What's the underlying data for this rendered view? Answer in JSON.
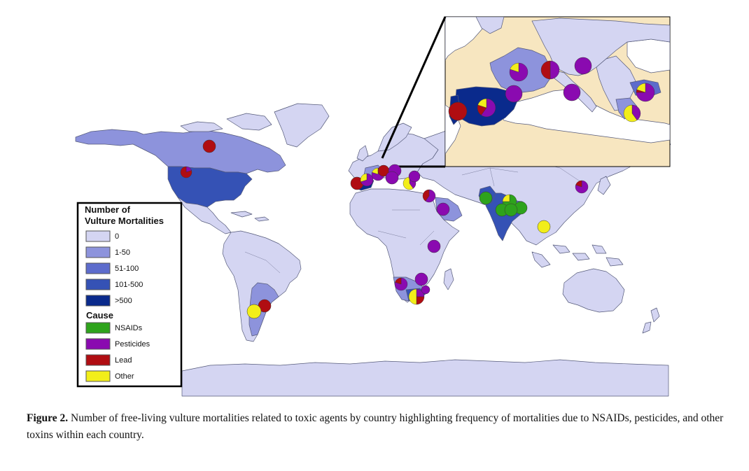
{
  "figure": {
    "caption_label": "Figure 2.",
    "caption_text": "Number of free-living vulture mortalities related to toxic agents by country highlighting frequency of mortalities due to NSAIDs, pesticides, and other toxins within each country."
  },
  "legend": {
    "title_line1": "Number of",
    "title_line2": "Vulture Mortalities",
    "classes": [
      {
        "label": "0",
        "color": "#d4d5f2"
      },
      {
        "label": "1-50",
        "color": "#8d93dc"
      },
      {
        "label": "51-100",
        "color": "#5d6ccc"
      },
      {
        "label": "101-500",
        "color": "#3552b5"
      },
      {
        "label": ">500",
        "color": "#0a2a8c"
      }
    ],
    "cause_title": "Cause",
    "causes": [
      {
        "label": "NSAIDs",
        "color": "#2ea31c"
      },
      {
        "label": "Pesticides",
        "color": "#8a0ab0"
      },
      {
        "label": "Lead",
        "color": "#b00d12"
      },
      {
        "label": "Other",
        "color": "#f2ee1a"
      }
    ]
  },
  "colors": {
    "ocean": "#ffffff",
    "land_outside_inset": "#f7e6c0",
    "border": "#555a7a"
  },
  "pies": [
    {
      "name": "pie-canada",
      "slices": {
        "lead": 1
      }
    },
    {
      "name": "pie-usa",
      "slices": {
        "lead": 0.8,
        "pesticides": 0.2
      }
    },
    {
      "name": "pie-argentina-north",
      "slices": {
        "lead": 1
      }
    },
    {
      "name": "pie-argentina-south",
      "slices": {
        "other": 1
      }
    },
    {
      "name": "pie-portugal",
      "slices": {
        "lead": 1
      }
    },
    {
      "name": "pie-spain",
      "slices": {
        "pesticides": 0.6,
        "lead": 0.2,
        "other": 0.2
      }
    },
    {
      "name": "pie-france",
      "slices": {
        "pesticides": 0.8,
        "other": 0.2
      }
    },
    {
      "name": "pie-switzerland",
      "slices": {
        "pesticides": 1
      }
    },
    {
      "name": "pie-italy-north",
      "slices": {
        "lead": 0.5,
        "pesticides": 0.5
      }
    },
    {
      "name": "pie-austria",
      "slices": {
        "pesticides": 1
      }
    },
    {
      "name": "pie-croatia",
      "slices": {
        "pesticides": 1
      }
    },
    {
      "name": "pie-bulgaria",
      "slices": {
        "pesticides": 0.75,
        "lead": 0.05,
        "other": 0.2
      }
    },
    {
      "name": "pie-greece",
      "slices": {
        "other": 0.6,
        "pesticides": 0.4
      }
    },
    {
      "name": "pie-israel",
      "slices": {
        "pesticides": 0.6,
        "lead": 0.4
      }
    },
    {
      "name": "pie-saudi-arabia",
      "slices": {
        "pesticides": 1
      }
    },
    {
      "name": "pie-pakistan",
      "slices": {
        "nsaids": 1
      }
    },
    {
      "name": "pie-india-north",
      "slices": {
        "nsaids": 0.75,
        "other": 0.25
      }
    },
    {
      "name": "pie-india-central",
      "slices": {
        "nsaids": 1
      }
    },
    {
      "name": "pie-nepal",
      "slices": {
        "nsaids": 1
      }
    },
    {
      "name": "pie-cambodia",
      "slices": {
        "other": 1
      }
    },
    {
      "name": "pie-korea",
      "slices": {
        "pesticides": 0.8,
        "lead": 0.2
      }
    },
    {
      "name": "pie-kenya",
      "slices": {
        "pesticides": 1
      }
    },
    {
      "name": "pie-namibia",
      "slices": {
        "pesticides": 0.8,
        "lead": 0.2
      }
    },
    {
      "name": "pie-botswana",
      "slices": {
        "pesticides": 1
      }
    },
    {
      "name": "pie-south-africa",
      "slices": {
        "other": 0.5,
        "lead": 0.25,
        "pesticides": 0.25
      }
    },
    {
      "name": "pie-zimbabwe",
      "slices": {
        "pesticides": 1
      }
    }
  ]
}
